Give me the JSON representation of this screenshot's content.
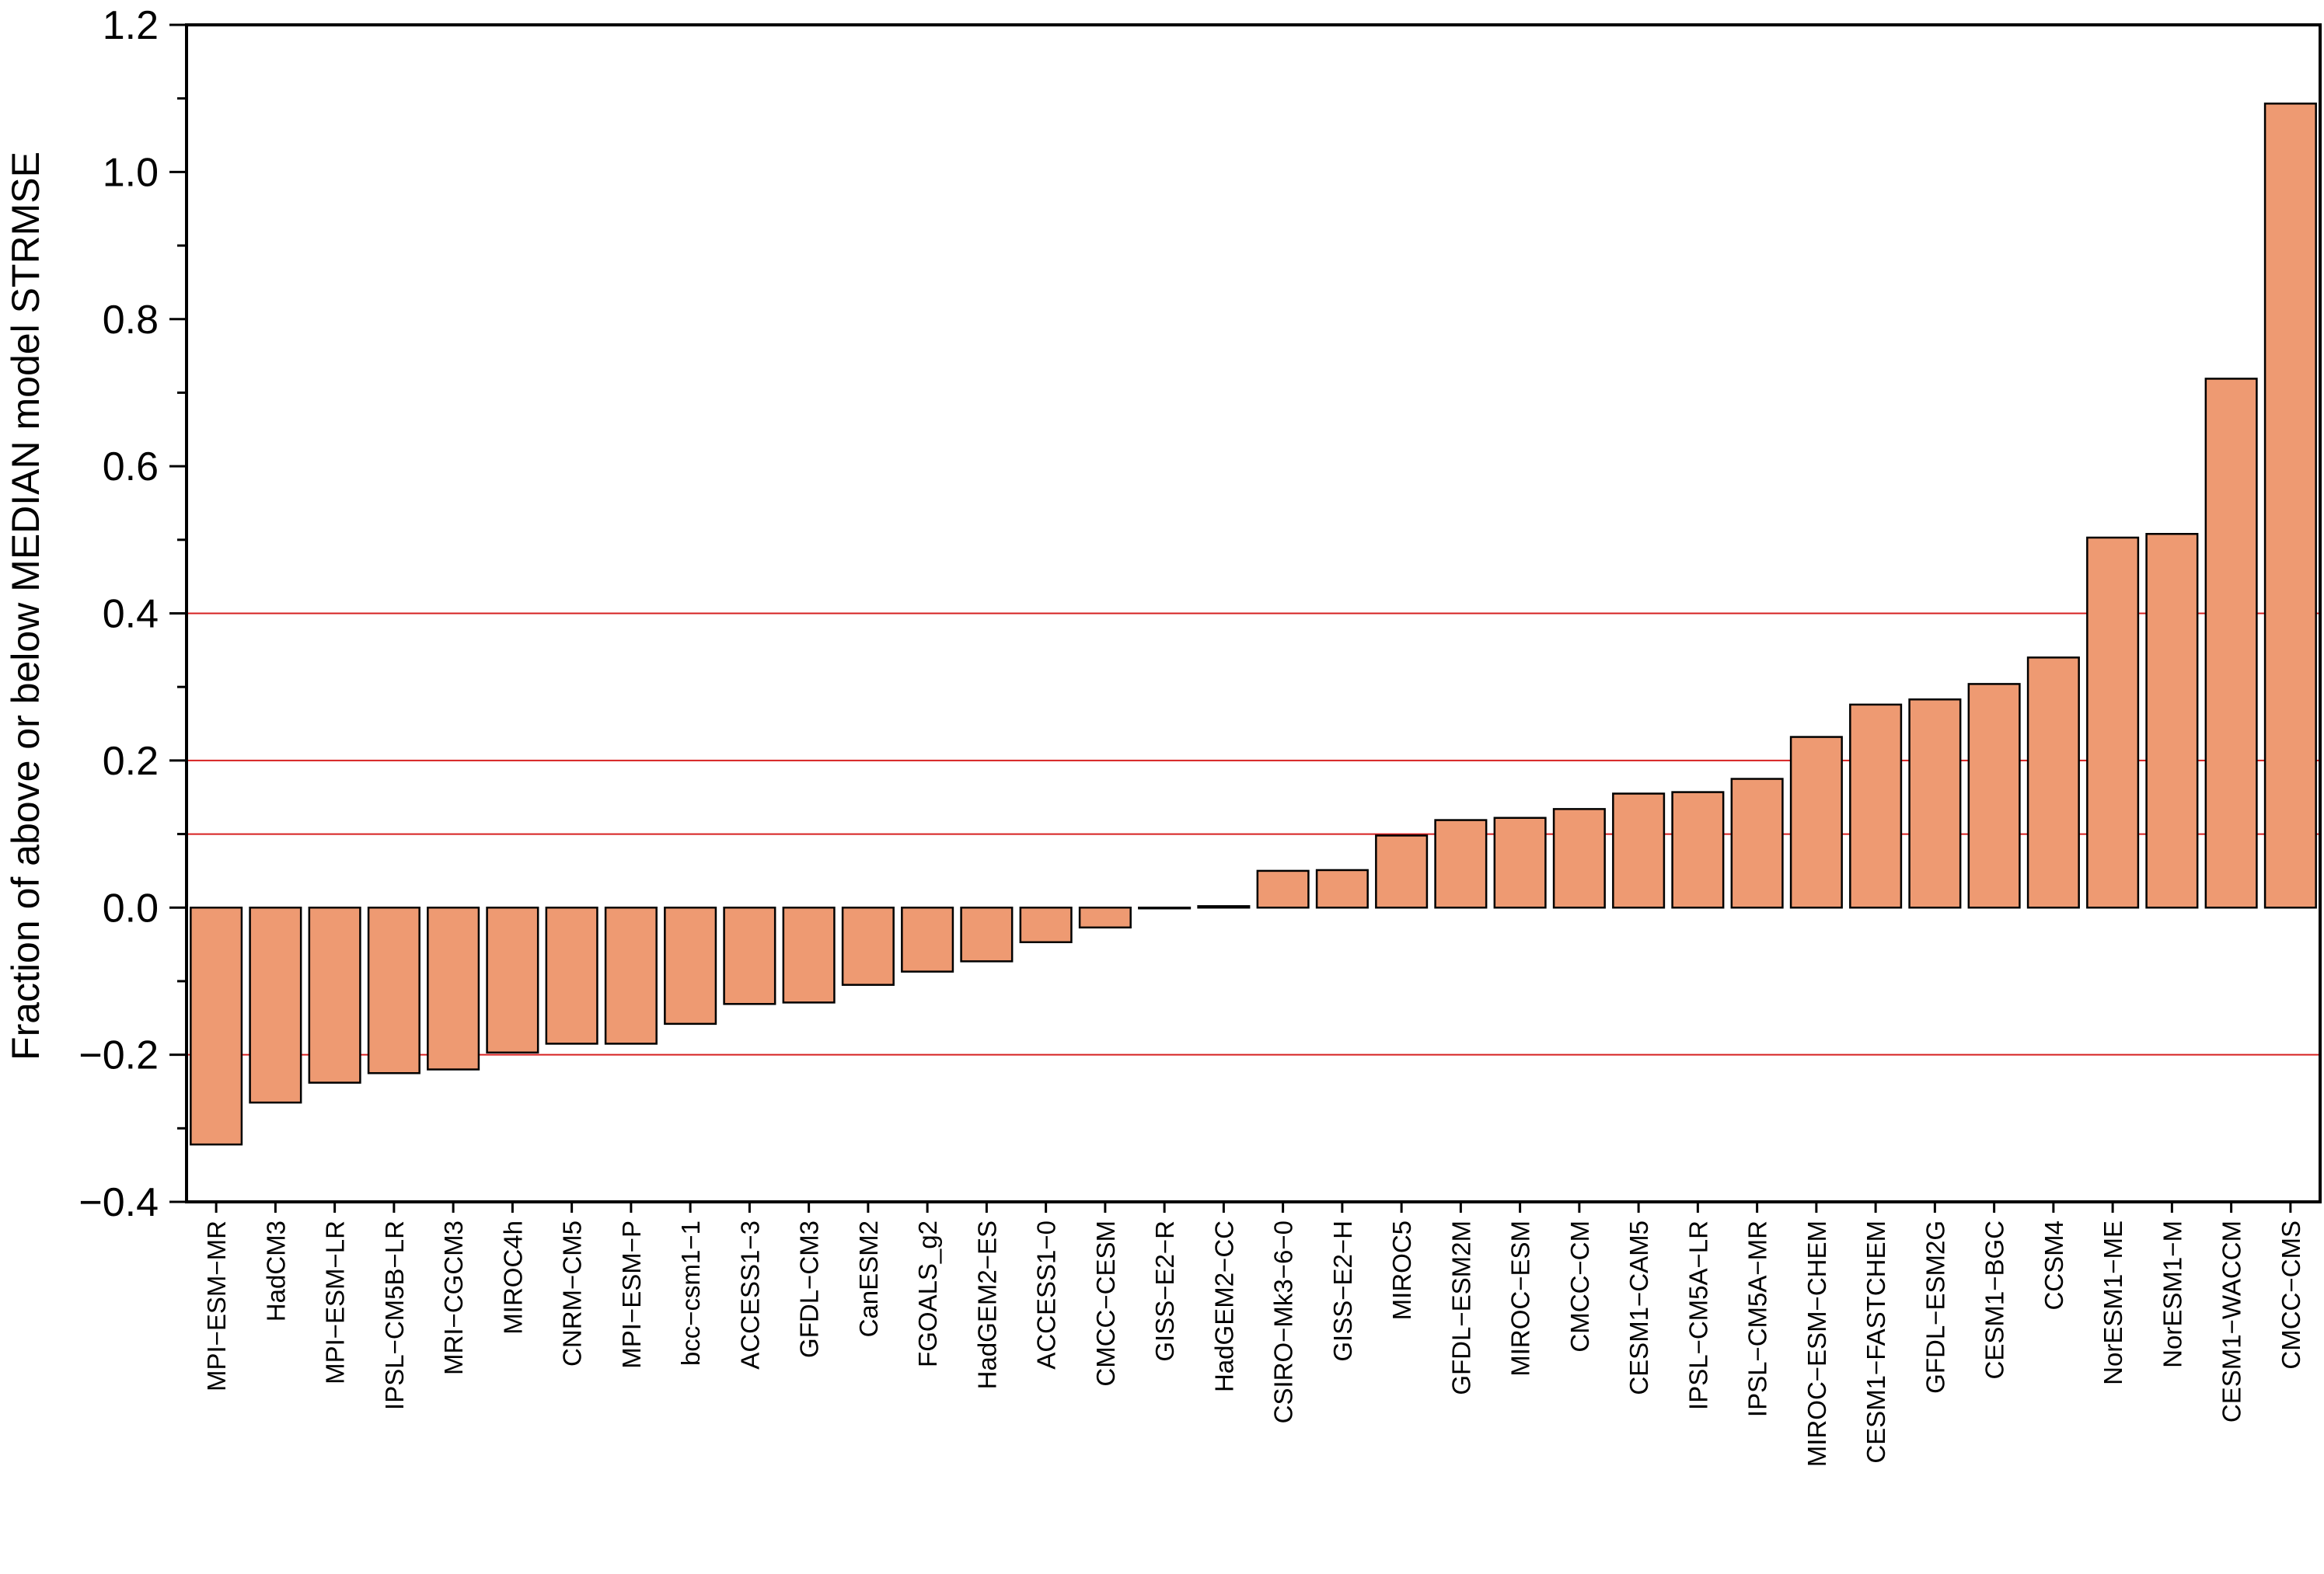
{
  "chart_data": {
    "type": "bar",
    "title": "",
    "xlabel": "",
    "ylabel": "Fraction of above or below MEDIAN model STRMSE",
    "ylim": [
      -0.4,
      1.2
    ],
    "yticks": [
      -0.4,
      -0.2,
      0.0,
      0.2,
      0.4,
      0.6,
      0.8,
      1.0,
      1.2
    ],
    "ytick_labels": [
      "−0.4",
      "−0.2",
      "0.0",
      "0.2",
      "0.4",
      "0.6",
      "0.8",
      "1.0",
      "1.2"
    ],
    "reference_lines": [
      -0.2,
      0.1,
      0.2,
      0.4
    ],
    "grid": false,
    "bar_color": "#ee9a72",
    "reference_line_color": "#d62020",
    "categories": [
      "MPI−ESM−MR",
      "HadCM3",
      "MPI−ESM−LR",
      "IPSL−CM5B−LR",
      "MRI−CGCM3",
      "MIROC4h",
      "CNRM−CM5",
      "MPI−ESM−P",
      "bcc−csm1−1",
      "ACCESS1−3",
      "GFDL−CM3",
      "CanESM2",
      "FGOALS_g2",
      "HadGEM2−ES",
      "ACCESS1−0",
      "CMCC−CESM",
      "GISS−E2−R",
      "HadGEM2−CC",
      "CSIRO−Mk3−6−0",
      "GISS−E2−H",
      "MIROC5",
      "GFDL−ESM2M",
      "MIROC−ESM",
      "CMCC−CM",
      "CESM1−CAM5",
      "IPSL−CM5A−LR",
      "IPSL−CM5A−MR",
      "MIROC−ESM−CHEM",
      "CESM1−FASTCHEM",
      "GFDL−ESM2G",
      "CESM1−BGC",
      "CCSM4",
      "NorESM1−ME",
      "NorESM1−M",
      "CESM1−WACCM",
      "CMCC−CMS"
    ],
    "values": [
      -0.322,
      -0.265,
      -0.238,
      -0.225,
      -0.22,
      -0.197,
      -0.185,
      -0.185,
      -0.158,
      -0.131,
      -0.129,
      -0.105,
      -0.087,
      -0.073,
      -0.047,
      -0.027,
      0.0,
      0.002,
      0.05,
      0.051,
      0.098,
      0.119,
      0.122,
      0.134,
      0.155,
      0.157,
      0.175,
      0.232,
      0.276,
      0.283,
      0.304,
      0.34,
      0.503,
      0.508,
      0.719,
      1.093
    ]
  }
}
